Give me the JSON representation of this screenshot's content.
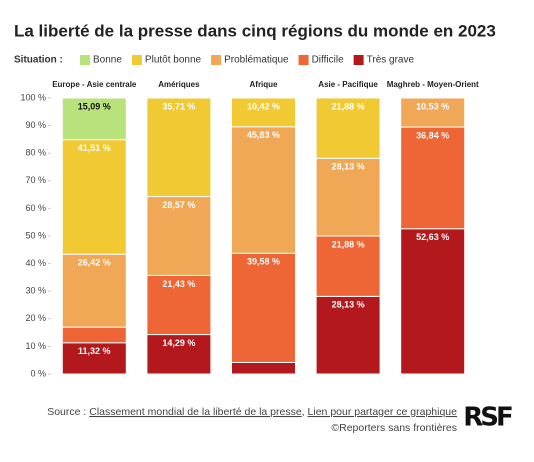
{
  "chart_data": {
    "type": "stacked_bar",
    "title": "La liberté de la presse dans cinq régions du monde en 2023",
    "legend_title": "Situation :",
    "categories": [
      "Europe - Asie centrale",
      "Amériques",
      "Afrique",
      "Asie - Pacifique",
      "Maghreb - Moyen-Orient"
    ],
    "series": [
      {
        "name": "Bonne",
        "color": "#b8e27c",
        "values": [
          15.09,
          0,
          0,
          0,
          0
        ],
        "value_labels": [
          "15,09 %",
          null,
          null,
          null,
          null
        ]
      },
      {
        "name": "Plutôt bonne",
        "color": "#f1c933",
        "values": [
          41.51,
          35.71,
          10.42,
          21.88,
          0
        ],
        "value_labels": [
          "41,51 %",
          "35,71 %",
          "10,42 %",
          "21,88 %",
          null
        ]
      },
      {
        "name": "Problématique",
        "color": "#f0a756",
        "values": [
          26.42,
          28.57,
          45.83,
          28.13,
          10.53
        ],
        "value_labels": [
          "26,42 %",
          "28,57 %",
          "45,83 %",
          "28,13 %",
          "10,53 %"
        ]
      },
      {
        "name": "Difficile",
        "color": "#ee6536",
        "values": [
          5.66,
          21.43,
          39.58,
          21.88,
          36.84
        ],
        "value_labels": [
          null,
          "21,43 %",
          "39,58 %",
          "21,88 %",
          "36,84 %"
        ]
      },
      {
        "name": "Très grave",
        "color": "#b3181c",
        "values": [
          11.32,
          14.29,
          4.17,
          28.13,
          52.63
        ],
        "value_labels": [
          "11,32 %",
          "14,29 %",
          null,
          "28,13 %",
          "52,63 %"
        ]
      }
    ],
    "ylim": [
      0,
      100
    ],
    "yticks": [
      {
        "value": 0,
        "label": "0 %"
      },
      {
        "value": 10,
        "label": "10 %"
      },
      {
        "value": 20,
        "label": "20 %"
      },
      {
        "value": 30,
        "label": "30 %"
      },
      {
        "value": 40,
        "label": "40 %"
      },
      {
        "value": 50,
        "label": "50 %"
      },
      {
        "value": 60,
        "label": "60 %"
      },
      {
        "value": 70,
        "label": "70 %"
      },
      {
        "value": 80,
        "label": "80 %"
      },
      {
        "value": 90,
        "label": "90 %"
      },
      {
        "value": 100,
        "label": "100 %"
      }
    ],
    "source_label": "Source :",
    "source_link": "Classement mondial de la liberté de la presse",
    "share_link": "Lien pour partager ce graphique",
    "credit": "©Reporters sans frontières",
    "logo": "RSF"
  }
}
